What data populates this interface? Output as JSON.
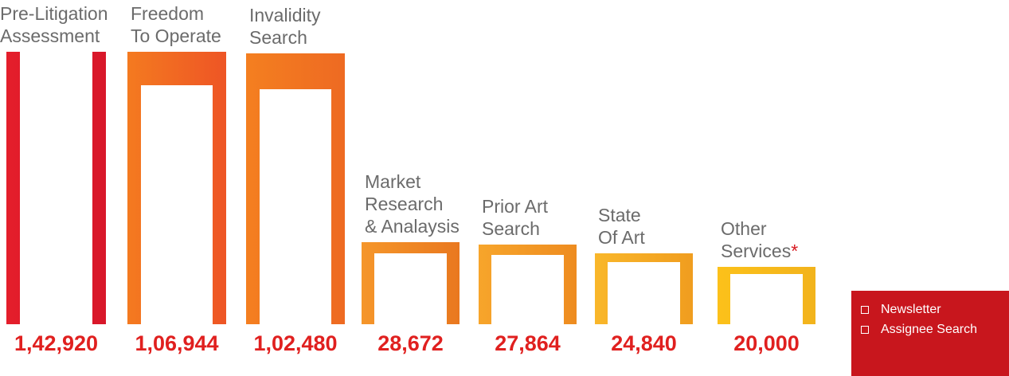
{
  "chart_data": {
    "type": "bar",
    "categories": [
      "Pre-Litigation\nAssessment",
      "Freedom\nTo Operate",
      "Invalidity\nSearch",
      "Market\nResearch\n& Analaysis",
      "Prior Art\nSearch",
      "State\nOf Art",
      "Other\nServices"
    ],
    "category_suffix": [
      "",
      "",
      "",
      "",
      "",
      "",
      "*"
    ],
    "values": [
      142920,
      106944,
      102480,
      28672,
      27864,
      24840,
      20000
    ],
    "value_labels": [
      "1,42,920",
      "1,06,944",
      "1,02,480",
      "28,672",
      "27,864",
      "24,840",
      "20,000"
    ],
    "colors": [
      [
        "#e41e2b",
        "#d8172a"
      ],
      [
        "#f47a20",
        "#ee5525"
      ],
      [
        "#f47f20",
        "#ee6a22"
      ],
      [
        "#f5962a",
        "#e9781f"
      ],
      [
        "#f7a52b",
        "#ee8c20"
      ],
      [
        "#f9b72a",
        "#f09d1f"
      ],
      [
        "#fcc11a",
        "#f2b31c"
      ]
    ],
    "title": "",
    "xlabel": "",
    "ylabel": "",
    "grid": false
  },
  "legend": {
    "items": [
      "Newsletter",
      "Assignee Search"
    ],
    "background": "#c8161d"
  }
}
